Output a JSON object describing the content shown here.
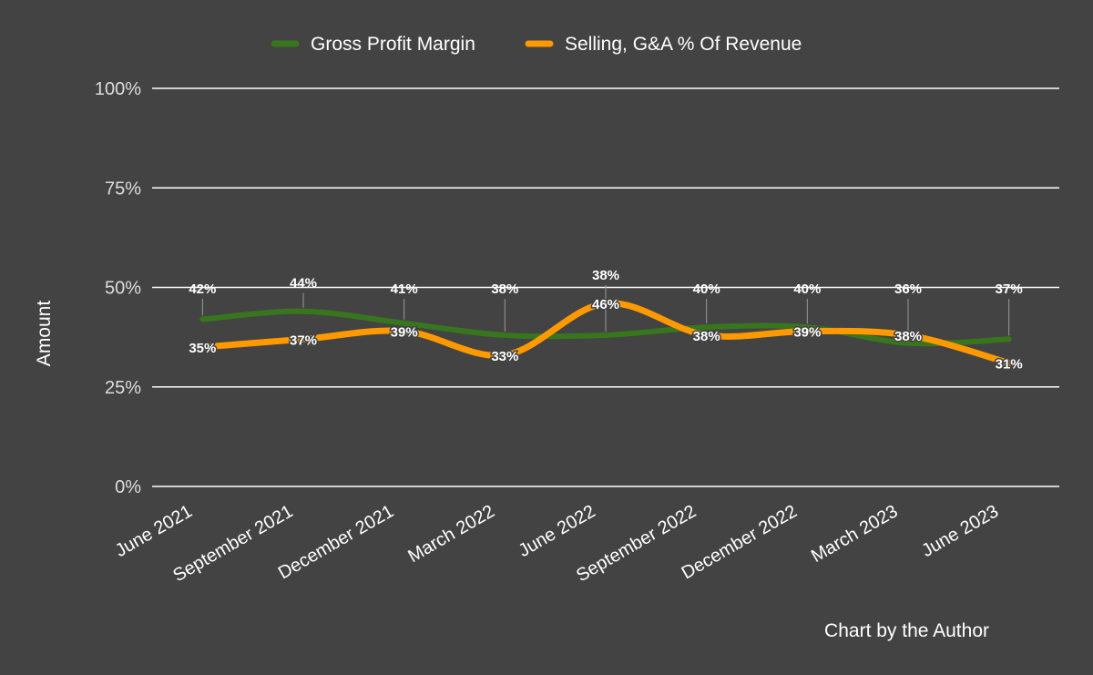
{
  "chart_data": {
    "type": "line",
    "categories": [
      "June 2021",
      "September 2021",
      "December 2021",
      "March 2022",
      "June 2022",
      "September 2022",
      "December 2022",
      "March 2023",
      "June 2023"
    ],
    "series": [
      {
        "name": "Gross Profit Margin",
        "color": "#38761d",
        "values": [
          42,
          44,
          41,
          38,
          38,
          40,
          40,
          36,
          37
        ],
        "labels": [
          "42%",
          "44%",
          "41%",
          "38%",
          "38%",
          "40%",
          "40%",
          "36%",
          "37%"
        ]
      },
      {
        "name": "Selling, G&A % Of Revenue",
        "color": "#ff9900",
        "values": [
          35,
          37,
          39,
          33,
          46,
          38,
          39,
          38,
          31
        ],
        "labels": [
          "35%",
          "37%",
          "39%",
          "33%",
          "46%",
          "38%",
          "39%",
          "38%",
          "31%"
        ]
      }
    ],
    "ylabel": "Amount",
    "ylim": [
      0,
      100
    ],
    "yticks": [
      "0%",
      "25%",
      "50%",
      "75%",
      "100%"
    ],
    "ytick_values": [
      0,
      25,
      50,
      75,
      100
    ],
    "grid": true,
    "legend_position": "top",
    "note": "Chart by the Author"
  }
}
